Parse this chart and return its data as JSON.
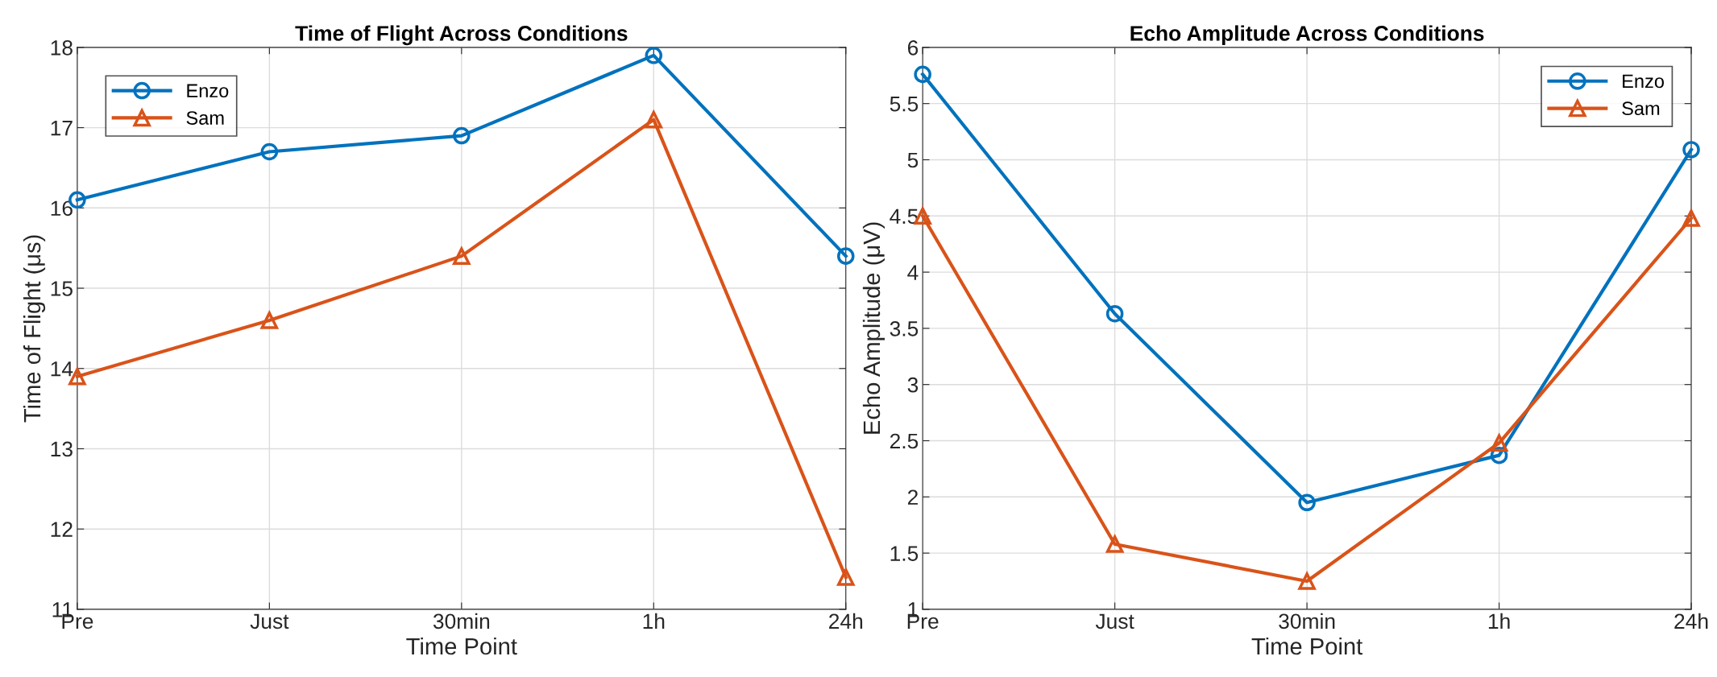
{
  "chart_data": [
    {
      "type": "line",
      "title": "Time of Flight Across Conditions",
      "xlabel": "Time Point",
      "ylabel": "Time of Flight (μs)",
      "categories": [
        "Pre",
        "Just",
        "30min",
        "1h",
        "24h"
      ],
      "series": [
        {
          "name": "Enzo",
          "color": "#0072bd",
          "marker": "circle",
          "values": [
            16.1,
            16.7,
            16.9,
            17.9,
            15.4
          ]
        },
        {
          "name": "Sam",
          "color": "#d95319",
          "marker": "triangle",
          "values": [
            13.9,
            14.6,
            15.4,
            17.1,
            11.4
          ]
        }
      ],
      "ylim": [
        11,
        18
      ],
      "yticks": [
        11,
        12,
        13,
        14,
        15,
        16,
        17,
        18
      ],
      "grid": true,
      "legend": "top left",
      "line_style": "solid"
    },
    {
      "type": "line",
      "title": "Echo Amplitude Across Conditions",
      "xlabel": "Time Point",
      "ylabel": "Echo Amplitude (μV)",
      "categories": [
        "Pre",
        "Just",
        "30min",
        "1h",
        "24h"
      ],
      "series": [
        {
          "name": "Enzo",
          "color": "#0072bd",
          "marker": "circle",
          "values": [
            5.76,
            3.63,
            1.95,
            2.37,
            5.09
          ]
        },
        {
          "name": "Sam",
          "color": "#d95319",
          "marker": "triangle",
          "values": [
            4.5,
            1.58,
            1.25,
            2.48,
            4.48
          ]
        }
      ],
      "ylim": [
        1,
        6
      ],
      "yticks": [
        1,
        1.5,
        2,
        2.5,
        3,
        3.5,
        4,
        4.5,
        5,
        5.5,
        6
      ],
      "grid": true,
      "legend": "top right",
      "line_style": "solid"
    }
  ]
}
